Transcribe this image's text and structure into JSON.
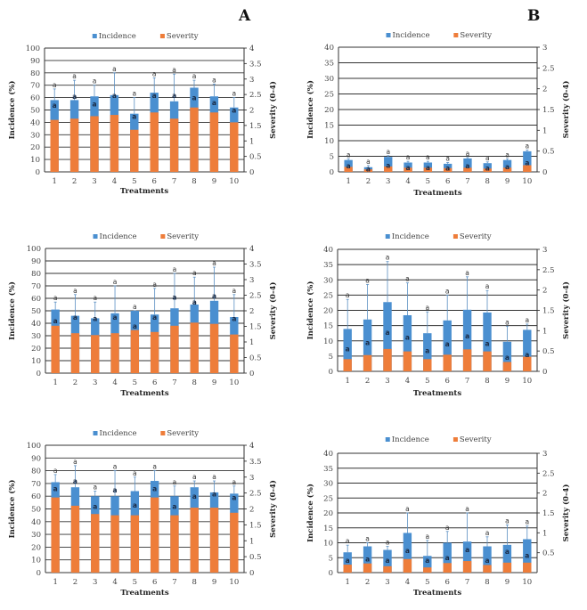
{
  "panel_labels": [
    "A",
    "B"
  ],
  "colors": {
    "incidence": "#4a8fd0",
    "severity": "#ee7d3a",
    "grid": "#333333",
    "errorbar": "#5b8fc2"
  },
  "chart_data": [
    {
      "id": "A1",
      "type": "bar",
      "panel": "A",
      "categories": [
        "1",
        "2",
        "3",
        "4",
        "5",
        "6",
        "7",
        "8",
        "9",
        "10"
      ],
      "xlabel": "Treatments",
      "ylabel": "Incidence (%)",
      "y2label": "Severity (0-4)",
      "ylim": [
        0,
        100
      ],
      "yticks": [
        0,
        10,
        20,
        30,
        40,
        50,
        60,
        70,
        80,
        90,
        100
      ],
      "y2lim": [
        0,
        4
      ],
      "y2ticks": [
        "0",
        "0.5",
        "1",
        "1.5",
        "2",
        "2.5",
        "3",
        "3.5",
        "4"
      ],
      "legend": [
        "Incidence",
        "Severity"
      ],
      "legend_position": "top",
      "series": [
        {
          "name": "Incidence",
          "values": [
            58,
            58,
            61,
            62,
            47,
            64,
            57,
            68,
            61,
            52
          ],
          "error_top": [
            67,
            74,
            70,
            80,
            60,
            76,
            79,
            74,
            71,
            60
          ],
          "label": "a"
        },
        {
          "name": "Severity",
          "values": [
            1.68,
            1.72,
            1.8,
            1.84,
            1.36,
            1.92,
            1.72,
            2.08,
            1.92,
            1.6
          ],
          "label": "a"
        }
      ],
      "severity_label_at": [
        54,
        61,
        55,
        62,
        45,
        62,
        62,
        60,
        56,
        50
      ]
    },
    {
      "id": "B1",
      "type": "bar",
      "panel": "B",
      "categories": [
        "1",
        "2",
        "3",
        "4",
        "5",
        "6",
        "7",
        "8",
        "9",
        "10"
      ],
      "xlabel": "Treatments",
      "ylabel": "Incidence (%)",
      "y2label": "Severity (0-4)",
      "ylim": [
        0,
        40
      ],
      "yticks": [
        0,
        5,
        10,
        15,
        20,
        25,
        30,
        35,
        40
      ],
      "y2lim": [
        0,
        3
      ],
      "y2ticks": [
        "0",
        "0.5",
        "1",
        "1.5",
        "2",
        "2.5",
        "3"
      ],
      "legend": [
        "Incidence",
        "Severity"
      ],
      "legend_position": "top",
      "series": [
        {
          "name": "Incidence",
          "values": [
            3.8,
            1.5,
            4.8,
            3.0,
            3.0,
            2.6,
            4.3,
            2.8,
            3.8,
            6.6
          ],
          "error_top": [
            4.2,
            2,
            5.2,
            3.4,
            3.4,
            3,
            4.6,
            3.2,
            4.2,
            7
          ],
          "label": "a"
        },
        {
          "name": "Severity",
          "values": [
            0.12,
            0.06,
            0.13,
            0.1,
            0.1,
            0.09,
            0.1,
            0.08,
            0.1,
            0.16
          ],
          "label": "a"
        }
      ],
      "severity_label_at": [
        2,
        1,
        2.2,
        1.5,
        1.5,
        1.3,
        2,
        1.3,
        1.7,
        3
      ]
    },
    {
      "id": "A2",
      "type": "bar",
      "panel": "A",
      "categories": [
        "1",
        "2",
        "3",
        "4",
        "5",
        "6",
        "7",
        "8",
        "9",
        "10"
      ],
      "xlabel": "Treatments",
      "ylabel": "Incidence (%)",
      "y2label": "Severity (0-4)",
      "ylim": [
        0,
        100
      ],
      "yticks": [
        0,
        10,
        20,
        30,
        40,
        50,
        60,
        70,
        80,
        90,
        100
      ],
      "y2lim": [
        0,
        4
      ],
      "y2ticks": [
        "0",
        "0.5",
        "1",
        "1.5",
        "2",
        "2.5",
        "3",
        "3.5",
        "4"
      ],
      "legend": [
        "Incidence",
        "Severity"
      ],
      "legend_position": "top",
      "series": [
        {
          "name": "Incidence",
          "values": [
            51,
            46,
            44,
            48,
            50,
            47,
            52,
            55,
            58,
            45
          ],
          "error_top": [
            57,
            63,
            57,
            70,
            50,
            68,
            80,
            77,
            85,
            63
          ],
          "label": "a"
        },
        {
          "name": "Severity",
          "values": [
            1.52,
            1.28,
            1.22,
            1.28,
            1.38,
            1.32,
            1.52,
            1.62,
            1.58,
            1.24
          ],
          "label": "a"
        }
      ],
      "severity_label_at": [
        42,
        45,
        44,
        45,
        38,
        45,
        61,
        57,
        62,
        44
      ]
    },
    {
      "id": "B2",
      "type": "bar",
      "panel": "B",
      "categories": [
        "1",
        "2",
        "3",
        "4",
        "5",
        "6",
        "7",
        "8",
        "9",
        "10"
      ],
      "xlabel": "Treatments",
      "ylabel": "Incidence (%)",
      "y2label": "Severity (0-4)",
      "ylim": [
        0,
        40
      ],
      "yticks": [
        0,
        5,
        10,
        15,
        20,
        25,
        30,
        35,
        40
      ],
      "y2lim": [
        0,
        3
      ],
      "y2ticks": [
        "0",
        "0.5",
        "1",
        "1.5",
        "2",
        "2.5",
        "3"
      ],
      "legend": [
        "Incidence",
        "Severity"
      ],
      "legend_position": "top",
      "series": [
        {
          "name": "Incidence",
          "values": [
            13.9,
            17,
            22.7,
            18.4,
            12.5,
            16.7,
            20.2,
            19.3,
            9.7,
            13.6
          ],
          "error_top": [
            23.6,
            28.5,
            36,
            29,
            19.5,
            25,
            31,
            26.5,
            14.8,
            15.5
          ],
          "label": "a"
        },
        {
          "name": "Severity",
          "values": [
            0.3,
            0.4,
            0.55,
            0.49,
            0.3,
            0.41,
            0.54,
            0.49,
            0.23,
            0.36
          ],
          "label": "a"
        }
      ],
      "severity_label_at": [
        7.5,
        9.5,
        12.8,
        11.2,
        6.9,
        9.1,
        11.7,
        9.2,
        4.6,
        5.5
      ]
    },
    {
      "id": "A3",
      "type": "bar",
      "panel": "A",
      "categories": [
        "1",
        "2",
        "3",
        "4",
        "5",
        "6",
        "7",
        "8",
        "9",
        "10"
      ],
      "xlabel": "Treatments",
      "ylabel": "Incidence (%)",
      "y2label": "Severity (0-4)",
      "ylim": [
        0,
        100
      ],
      "yticks": [
        0,
        10,
        20,
        30,
        40,
        50,
        60,
        70,
        80,
        90,
        100
      ],
      "y2lim": [
        0,
        4
      ],
      "y2ticks": [
        "0",
        "0.5",
        "1",
        "1.5",
        "2",
        "2.5",
        "3",
        "3.5",
        "4"
      ],
      "legend": [
        "Incidence",
        "Severity"
      ],
      "legend_position": "top",
      "series": [
        {
          "name": "Incidence",
          "values": [
            71,
            67,
            60,
            60,
            64,
            72,
            60,
            67,
            63,
            62
          ],
          "error_top": [
            77,
            84,
            64,
            80,
            75,
            80,
            68,
            72,
            72,
            68
          ],
          "label": "a"
        },
        {
          "name": "Severity",
          "values": [
            2.36,
            2.1,
            1.84,
            1.8,
            1.8,
            2.36,
            1.8,
            2.04,
            2.04,
            1.88
          ],
          "label": "a"
        }
      ],
      "severity_label_at": [
        66,
        72,
        52,
        65,
        53,
        66,
        52,
        60,
        62,
        59
      ]
    },
    {
      "id": "B3",
      "type": "bar",
      "panel": "B",
      "categories": [
        "1",
        "2",
        "3",
        "4",
        "5",
        "6",
        "7",
        "8",
        "9",
        "10"
      ],
      "xlabel": "Treatments",
      "ylabel": "Incidence (%)",
      "y2label": "Severity (0-4)",
      "ylim": [
        0,
        40
      ],
      "yticks": [
        0,
        5,
        10,
        15,
        20,
        25,
        30,
        35,
        40
      ],
      "y2lim": [
        0,
        3
      ],
      "y2ticks": [
        "0.5",
        "1",
        "1.5",
        "2",
        "2.5",
        "3"
      ],
      "legend": [
        "Incidence",
        "Severity"
      ],
      "legend_position": "top",
      "series": [
        {
          "name": "Incidence",
          "values": [
            6.8,
            8.8,
            7.6,
            13.3,
            5.6,
            10,
            10.4,
            8.8,
            9.3,
            11.2
          ],
          "error_top": [
            9.2,
            10,
            8.8,
            20,
            10.8,
            13.8,
            20,
            12,
            16,
            15.6
          ],
          "label": "a"
        },
        {
          "name": "Severity",
          "values": [
            0.2,
            0.23,
            0.16,
            0.34,
            0.13,
            0.24,
            0.29,
            0.19,
            0.25,
            0.25
          ],
          "label": "a"
        }
      ],
      "severity_label_at": [
        4.2,
        4.6,
        4.2,
        7.4,
        4.2,
        5.1,
        7.8,
        4.2,
        7.1,
        5.8
      ]
    }
  ]
}
